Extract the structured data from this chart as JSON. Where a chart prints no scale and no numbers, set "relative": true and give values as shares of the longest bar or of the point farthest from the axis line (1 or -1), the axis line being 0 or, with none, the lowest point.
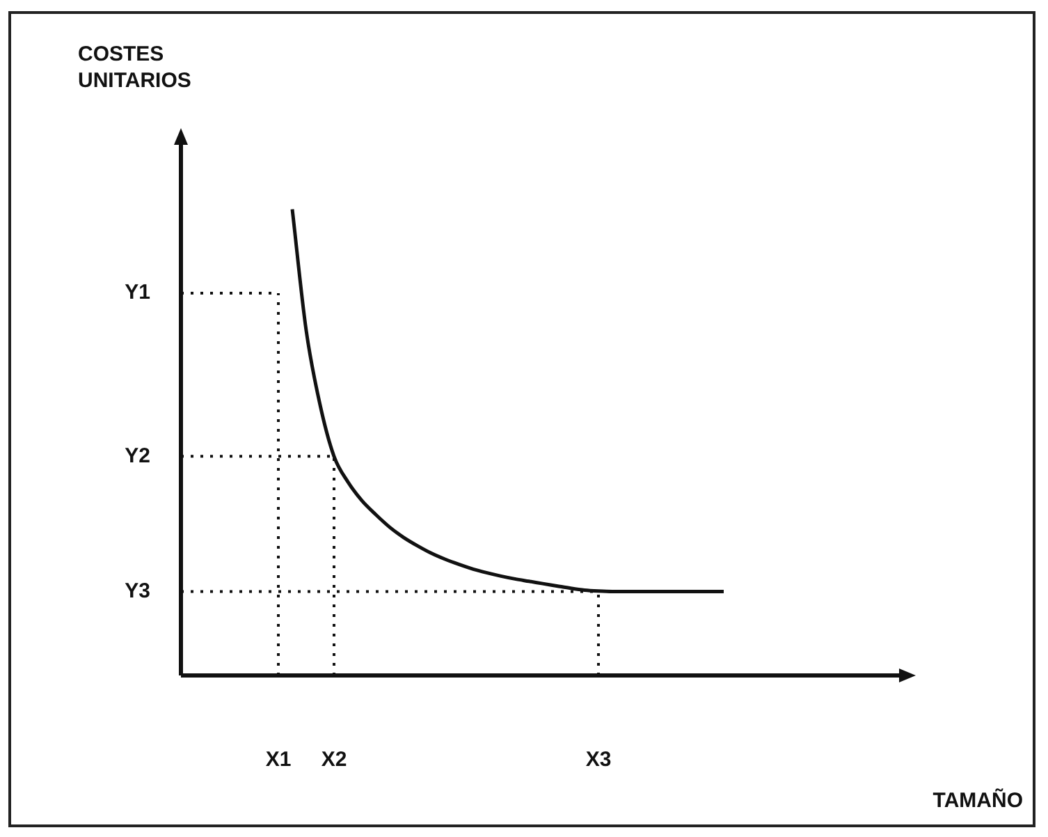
{
  "chart_data": {
    "type": "line",
    "xlabel": "TAMAÑO",
    "relative": true,
    "categories": [
      null,
      null,
      null,
      null,
      null,
      null,
      null,
      "X1",
      null,
      null,
      null,
      "X2",
      null,
      null,
      null,
      null,
      null,
      null,
      null,
      null,
      null,
      null,
      null,
      null,
      null,
      null,
      null,
      null,
      null,
      null,
      "X3",
      null,
      null,
      null,
      null,
      null,
      null,
      null,
      null,
      null,
      null,
      null,
      null,
      null,
      null,
      null,
      null,
      null,
      null,
      null,
      null
    ],
    "series": [
      {
        "color": "#111111",
        "values": [
          null,
          null,
          null,
          null,
          null,
          null,
          null,
          null,
          1,
          0.74,
          0.58,
          0.47,
          0.415,
          0.375,
          0.345,
          0.318,
          0.296,
          0.278,
          0.262,
          0.249,
          0.238,
          0.228,
          0.22,
          0.213,
          0.207,
          0.202,
          0.197,
          0.192,
          0.187,
          0.183,
          0.181,
          0.18,
          0.18,
          0.18,
          0.18,
          0.18,
          0.18,
          0.18,
          0.18,
          0.18,
          null,
          null,
          null,
          null,
          null,
          null,
          null,
          null,
          null,
          null,
          null
        ]
      }
    ],
    "ref_lines": [
      {
        "axis": "y",
        "value": 0.82,
        "label": "Y1",
        "line_style": "dotted",
        "color": "#111111"
      },
      {
        "axis": "y",
        "value": 0.47,
        "label": "Y2",
        "line_style": "dotted",
        "color": "#111111"
      },
      {
        "axis": "y",
        "value": 0.18,
        "label": "Y3",
        "line_style": "dotted",
        "color": "#111111"
      },
      {
        "axis": "x",
        "value": "X1",
        "line_style": "dotted",
        "color": "#111111"
      },
      {
        "axis": "x",
        "value": "X2",
        "line_style": "dotted",
        "color": "#111111"
      },
      {
        "axis": "x",
        "value": "X3",
        "line_style": "dotted",
        "color": "#111111"
      }
    ],
    "annotations": [
      "COSTES\nUNITARIOS"
    ],
    "grid": false,
    "legend": false,
    "marker": "none",
    "line_style": "solid"
  }
}
